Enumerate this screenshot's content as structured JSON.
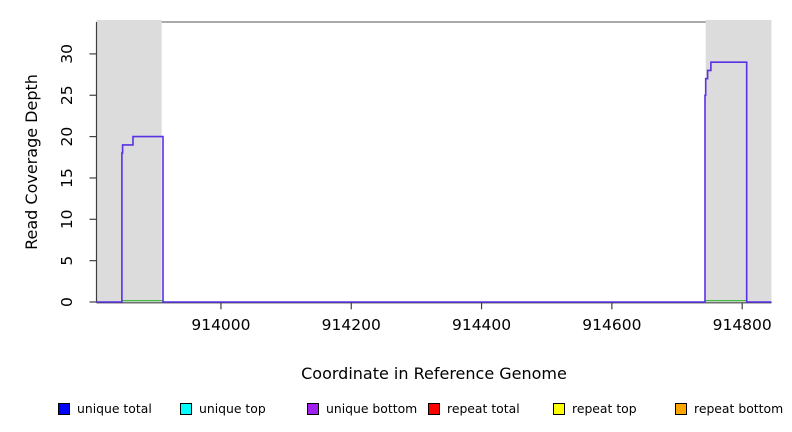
{
  "chart_data": {
    "type": "line",
    "subtype": "step-coverage-plot",
    "title": "",
    "xlabel": "Coordinate in Reference Genome",
    "ylabel": "Read Coverage Depth",
    "xlim": [
      913809,
      914845
    ],
    "ylim": [
      0,
      34
    ],
    "x_ticks": [
      914000,
      914200,
      914400,
      914600,
      914800
    ],
    "y_ticks": [
      0,
      5,
      10,
      15,
      20,
      25,
      30
    ],
    "grid": false,
    "legend_position": "bottom",
    "frame_color": "#404040",
    "shaded_regions": {
      "color": "#DCDCDC",
      "x_ranges": [
        [
          913809,
          913909
        ],
        [
          914744,
          914845
        ]
      ]
    },
    "series": [
      {
        "name": "unique coverage step curve",
        "color": "#5A30E6",
        "points": [
          [
            913809,
            0
          ],
          [
            913848,
            0
          ],
          [
            913848,
            18
          ],
          [
            913849,
            18
          ],
          [
            913849,
            19
          ],
          [
            913865,
            19
          ],
          [
            913865,
            20
          ],
          [
            913911,
            20
          ],
          [
            913911,
            0
          ],
          [
            914743,
            0
          ],
          [
            914743,
            25
          ],
          [
            914744,
            25
          ],
          [
            914744,
            27
          ],
          [
            914747,
            27
          ],
          [
            914747,
            28
          ],
          [
            914752,
            28
          ],
          [
            914752,
            29
          ],
          [
            914807,
            29
          ],
          [
            914807,
            0
          ],
          [
            914845,
            0
          ]
        ]
      },
      {
        "name": "baseline zero-depth segments",
        "color": "#44B944",
        "y": 0,
        "x_ranges": [
          [
            913848,
            913911
          ],
          [
            914743,
            914807
          ]
        ]
      }
    ],
    "legend": [
      {
        "label": "unique total",
        "color": "#0000FF"
      },
      {
        "label": "unique top",
        "color": "#00FFFF"
      },
      {
        "label": "unique bottom",
        "color": "#A020F0"
      },
      {
        "label": "repeat total",
        "color": "#FF0000"
      },
      {
        "label": "repeat top",
        "color": "#FFFF00"
      },
      {
        "label": "repeat bottom",
        "color": "#FFA500"
      }
    ]
  }
}
